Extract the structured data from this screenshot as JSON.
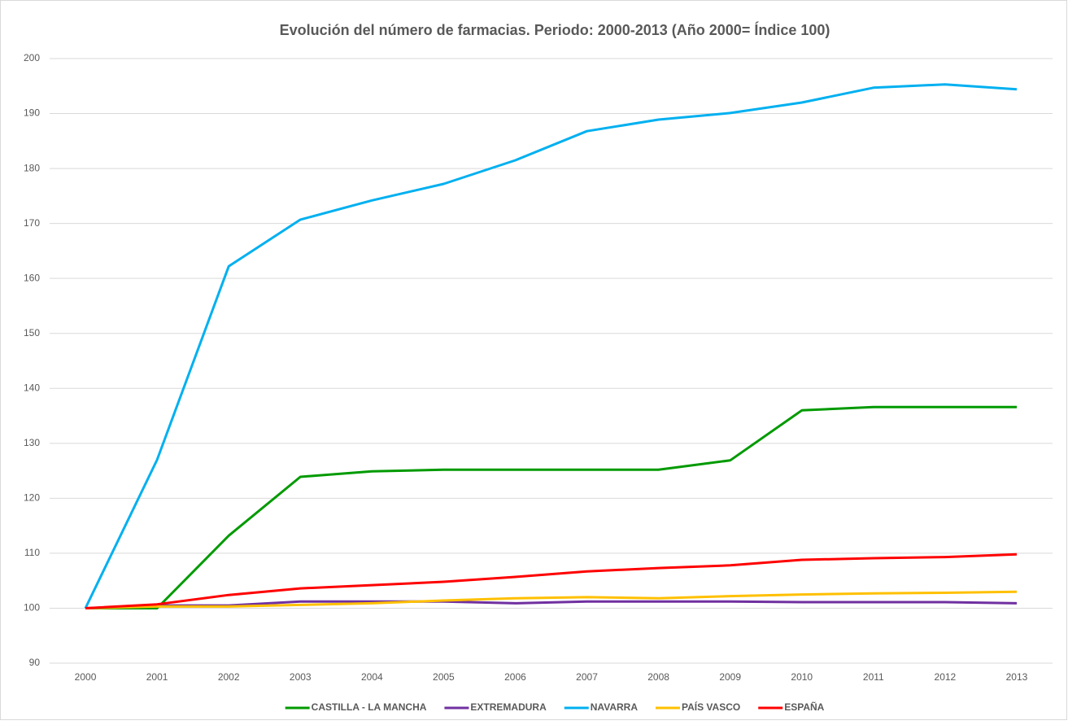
{
  "chart_data": {
    "type": "line",
    "title": "Evolución del número de farmacias. Periodo: 2000-2013 (Año 2000= Índice 100)",
    "categories": [
      "2000",
      "2001",
      "2002",
      "2003",
      "2004",
      "2005",
      "2006",
      "2007",
      "2008",
      "2009",
      "2010",
      "2011",
      "2012",
      "2013"
    ],
    "series": [
      {
        "name": "CASTILLA - LA MANCHA",
        "color": "#009a00",
        "values": [
          100,
          100,
          113.2,
          123.9,
          124.9,
          125.2,
          125.2,
          125.2,
          125.2,
          126.9,
          136.0,
          136.6,
          136.6,
          136.6
        ]
      },
      {
        "name": "EXTREMADURA",
        "color": "#7030a0",
        "values": [
          100,
          100.5,
          100.5,
          101.2,
          101.2,
          101.2,
          100.9,
          101.2,
          101.2,
          101.2,
          101.1,
          101.1,
          101.1,
          100.9
        ]
      },
      {
        "name": "NAVARRA",
        "color": "#00b0f0",
        "values": [
          100,
          127,
          162.2,
          170.7,
          174.2,
          177.2,
          181.5,
          186.8,
          188.9,
          190.1,
          192.0,
          194.7,
          195.3,
          194.4
        ]
      },
      {
        "name": "PAÍS VASCO",
        "color": "#ffc000",
        "values": [
          100,
          100.3,
          100.3,
          100.6,
          100.9,
          101.4,
          101.8,
          102.0,
          101.8,
          102.2,
          102.5,
          102.7,
          102.8,
          103.0
        ]
      },
      {
        "name": "ESPAÑA",
        "color": "#ff0000",
        "values": [
          100,
          100.7,
          102.4,
          103.6,
          104.2,
          104.8,
          105.7,
          106.7,
          107.3,
          107.8,
          108.8,
          109.1,
          109.3,
          109.8
        ]
      }
    ],
    "ylim": [
      90,
      200
    ],
    "yticks": [
      90,
      100,
      110,
      120,
      130,
      140,
      150,
      160,
      170,
      180,
      190,
      200
    ],
    "grid": true,
    "legend": "bottom"
  }
}
